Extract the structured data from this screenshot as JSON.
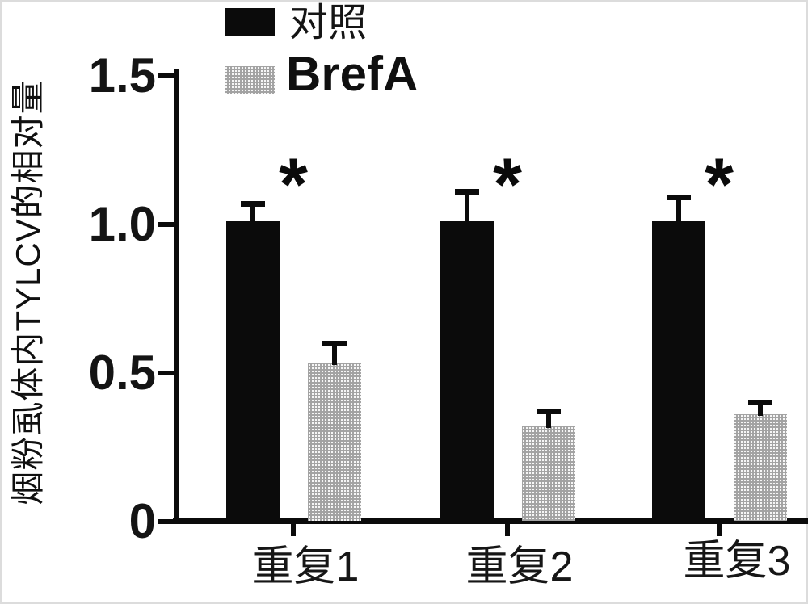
{
  "figure": {
    "background_color": "#ffffff",
    "frame_color": "#dcdcdc",
    "ink_color": "#0b0b0b",
    "gray_fill_color": "#a9a9a9"
  },
  "legend": {
    "position": "top-left-above-plot",
    "items": [
      {
        "label": "对照",
        "swatch_color": "#0b0b0b"
      },
      {
        "label": "BrefA",
        "swatch_color": "#a9a9a9"
      }
    ]
  },
  "chart_data": {
    "type": "bar",
    "categories": [
      "重复1",
      "重复2",
      "重复3"
    ],
    "series": [
      {
        "name": "对照",
        "color": "#0b0b0b",
        "values": [
          1.01,
          1.01,
          1.01
        ],
        "errors": [
          0.06,
          0.1,
          0.08
        ]
      },
      {
        "name": "BrefA",
        "color": "#a9a9a9",
        "values": [
          0.53,
          0.32,
          0.36
        ],
        "errors": [
          0.07,
          0.05,
          0.04
        ]
      }
    ],
    "significance_labels": [
      "*",
      "*",
      "*"
    ],
    "ylabel": "烟粉虱体内TYLCV的相对量",
    "xlabel": "",
    "ylim": [
      0,
      1.5
    ],
    "yticks": [
      0,
      0.5,
      1.0,
      1.5
    ],
    "ytick_labels": [
      "0",
      "0.5",
      "1.0",
      "1.5"
    ],
    "grid": false,
    "error_bars": true,
    "legend_position": "top"
  }
}
